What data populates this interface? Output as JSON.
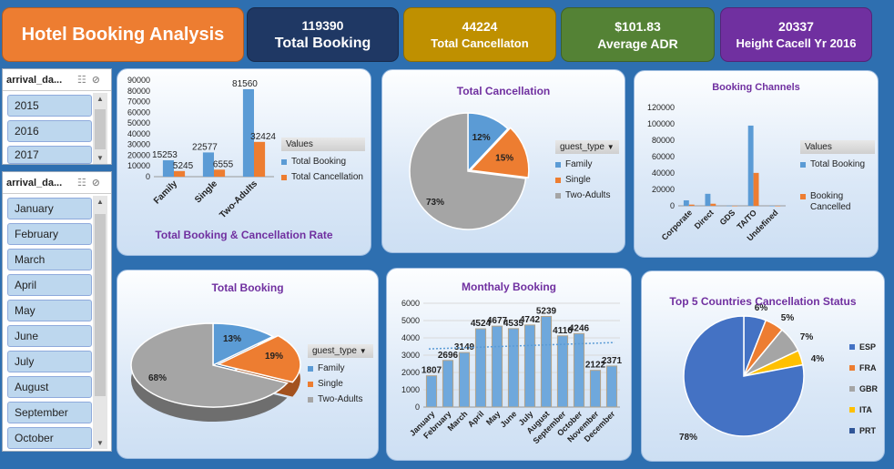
{
  "header": {
    "title": "Hotel Booking Analysis",
    "kpis": [
      {
        "value": "119390",
        "label": "Total Booking",
        "color": "#1f3864"
      },
      {
        "value": "44224",
        "label": "Total Cancellaton",
        "color": "#bf9000"
      },
      {
        "value": "$101.83",
        "label": "Average ADR",
        "color": "#548235"
      },
      {
        "value": "20337",
        "label": "Height Cacell Yr 2016",
        "color": "#7030a0"
      }
    ]
  },
  "slicers": {
    "year": {
      "header": "arrival_da...",
      "items": [
        "2015",
        "2016",
        "2017"
      ]
    },
    "month": {
      "header": "arrival_da...",
      "items": [
        "January",
        "February",
        "March",
        "April",
        "May",
        "June",
        "July",
        "August",
        "September",
        "October"
      ]
    }
  },
  "colors": {
    "blue": "#5b9bd5",
    "orange": "#ed7d31",
    "gray": "#a5a5a5",
    "yellow": "#ffc000",
    "darkblue": "#4472c4"
  },
  "chart_data": [
    {
      "id": "booking_cancel_rate",
      "type": "bar",
      "title": "Total Booking & Cancellation Rate",
      "categories": [
        "Family",
        "Single",
        "Two-Adults"
      ],
      "series": [
        {
          "name": "Total Booking",
          "values": [
            15253,
            22577,
            81560
          ]
        },
        {
          "name": "Total Cancellation",
          "values": [
            5245,
            6555,
            32424
          ]
        }
      ],
      "data_labels": [
        "15253",
        "5245",
        "22577",
        "6555",
        "81560",
        "32424"
      ],
      "yticks": [
        "0",
        "10000",
        "20000",
        "30000",
        "40000",
        "50000",
        "60000",
        "70000",
        "80000",
        "90000"
      ],
      "ylim": [
        0,
        90000
      ],
      "legend_title": "Values"
    },
    {
      "id": "total_cancellation",
      "type": "pie",
      "title": "Total Cancellation",
      "legend_title": "guest_type",
      "labels": [
        "Family",
        "Single",
        "Two-Adults"
      ],
      "values": [
        12,
        15,
        73
      ],
      "data_labels": [
        "12%",
        "15%",
        "73%"
      ]
    },
    {
      "id": "booking_channels",
      "type": "bar",
      "title": "Booking Channels",
      "categories": [
        "Corporate",
        "Direct",
        "GDS",
        "TA/TO",
        "Undefined"
      ],
      "series": [
        {
          "name": "Total Booking",
          "values": [
            6677,
            14645,
            193,
            97870,
            5
          ]
        },
        {
          "name": "Booking Cancelled",
          "values": [
            1474,
            2545,
            37,
            40163,
            5
          ]
        }
      ],
      "legend_labels": [
        "Total Booking",
        "Booking",
        "Cancelled"
      ],
      "yticks": [
        "0",
        "20000",
        "40000",
        "60000",
        "80000",
        "100000",
        "120000"
      ],
      "ylim": [
        0,
        120000
      ],
      "legend_title": "Values"
    },
    {
      "id": "total_booking",
      "type": "pie",
      "title": "Total Booking",
      "legend_title": "guest_type",
      "labels": [
        "Family",
        "Single",
        "Two-Adults"
      ],
      "values": [
        13,
        19,
        68
      ],
      "data_labels": [
        "13%",
        "19%",
        "68%"
      ]
    },
    {
      "id": "monthly_booking",
      "type": "bar",
      "title": "Monthaly Booking",
      "categories": [
        "January",
        "February",
        "March",
        "April",
        "May",
        "June",
        "July",
        "August",
        "September",
        "October",
        "November",
        "December"
      ],
      "values": [
        1807,
        2696,
        3149,
        4524,
        4677,
        4535,
        4742,
        5239,
        4116,
        4246,
        2122,
        2371
      ],
      "data_labels": [
        "1807",
        "2696",
        "3149",
        "4524",
        "4677",
        "4535",
        "4742",
        "5239",
        "4116",
        "4246",
        "2122",
        "2371"
      ],
      "yticks": [
        "0",
        "1000",
        "2000",
        "3000",
        "4000",
        "5000",
        "6000"
      ],
      "ylim": [
        0,
        6000
      ],
      "trendline_value": 3519
    },
    {
      "id": "top5_countries",
      "type": "pie",
      "title": "Top 5 Countries Cancellation Status",
      "labels": [
        "ESP",
        "FRA",
        "GBR",
        "ITA",
        "PRT"
      ],
      "values": [
        6,
        5,
        7,
        4,
        78
      ],
      "data_labels": [
        "6%",
        "5%",
        "7%",
        "4%",
        "78%"
      ]
    }
  ]
}
